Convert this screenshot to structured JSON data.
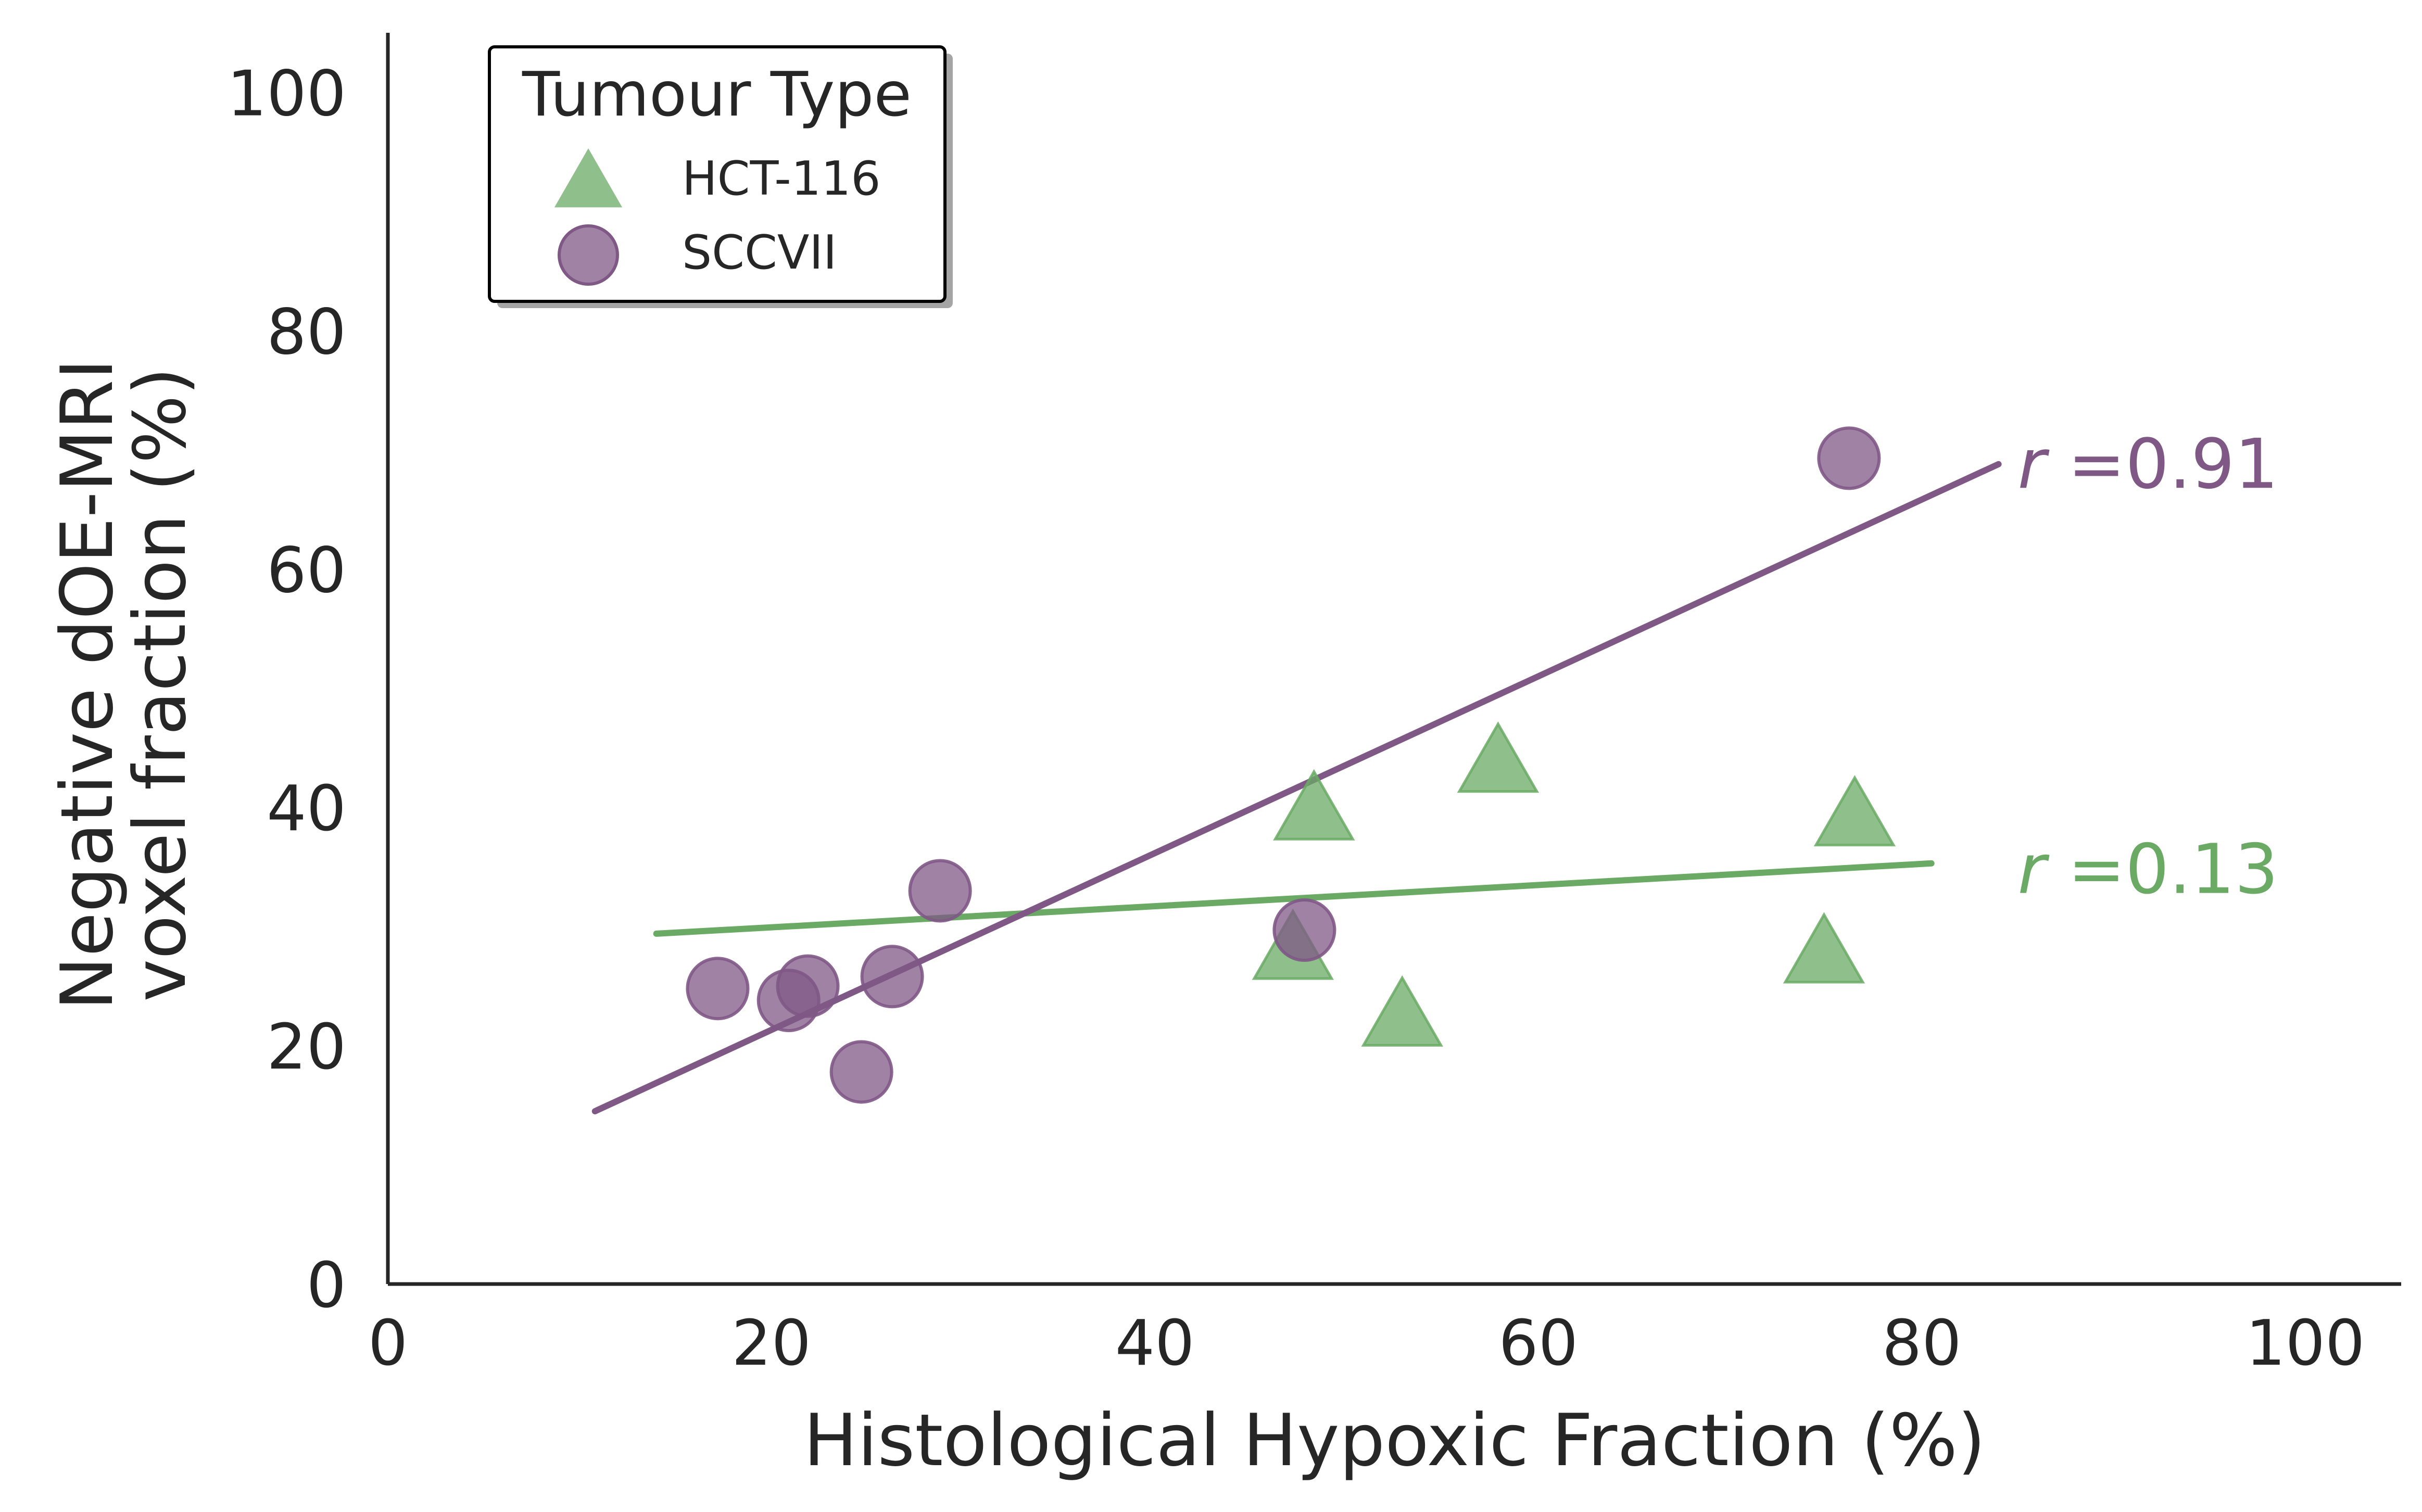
{
  "chart_data": {
    "type": "scatter",
    "xlabel": "Histological Hypoxic Fraction (%)",
    "ylabel_lines": [
      "Negative dOE-MRI",
      "voxel fraction (%)"
    ],
    "xlim": [
      0,
      105
    ],
    "ylim": [
      0,
      105
    ],
    "xticks": [
      0,
      20,
      40,
      60,
      80,
      100
    ],
    "yticks": [
      0,
      20,
      40,
      60,
      80,
      100
    ],
    "grid": false,
    "legend": {
      "title": "Tumour Type",
      "placement": "top-left"
    },
    "series": [
      {
        "name": "HCT-116",
        "marker": "triangle",
        "color": "#6aaa64",
        "points": [
          {
            "x": 47.2,
            "y": 27.8
          },
          {
            "x": 48.3,
            "y": 39.5
          },
          {
            "x": 52.9,
            "y": 22.2
          },
          {
            "x": 57.9,
            "y": 43.5
          },
          {
            "x": 74.9,
            "y": 27.5
          },
          {
            "x": 76.5,
            "y": 39.0
          }
        ],
        "fit_line": {
          "x": [
            14.0,
            80.5
          ],
          "y": [
            29.4,
            35.3
          ]
        },
        "annotation": {
          "prefix": "r",
          "text": " =0.13",
          "x": 85,
          "y": 35
        }
      },
      {
        "name": "SCCVII",
        "marker": "circle",
        "color": "#7f5886",
        "points": [
          {
            "x": 17.2,
            "y": 24.8
          },
          {
            "x": 20.9,
            "y": 23.8
          },
          {
            "x": 21.9,
            "y": 25.0
          },
          {
            "x": 24.7,
            "y": 17.8
          },
          {
            "x": 26.3,
            "y": 25.8
          },
          {
            "x": 28.8,
            "y": 33.0
          },
          {
            "x": 47.8,
            "y": 29.7
          },
          {
            "x": 76.2,
            "y": 69.3
          }
        ],
        "fit_line": {
          "x": [
            10.8,
            84.0
          ],
          "y": [
            14.5,
            68.8
          ]
        },
        "annotation": {
          "prefix": "r",
          "text": " =0.91",
          "x": 85,
          "y": 69
        }
      }
    ]
  }
}
